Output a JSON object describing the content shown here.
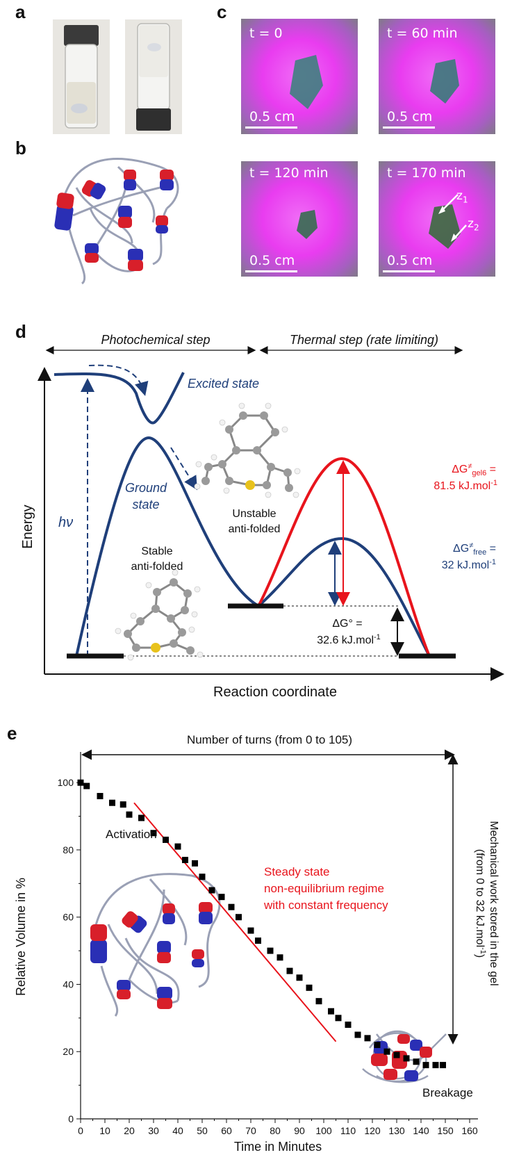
{
  "panels": {
    "a": "a",
    "b": "b",
    "c": "c",
    "d": "d",
    "e": "e"
  },
  "panel_c": {
    "times": [
      "t = 0",
      "t = 60 min",
      "t = 120 min",
      "t = 170 min"
    ],
    "scale_bar": "0.5 cm",
    "zone_z1": "z",
    "zone_z1_sub": "1",
    "zone_z2": "z",
    "zone_z2_sub": "2"
  },
  "panel_d": {
    "photochemical_step": "Photochemical step",
    "thermal_step": "Thermal step (rate limiting)",
    "excited_state": "Excited state",
    "ground_state_1": "Ground",
    "ground_state_2": "state",
    "hv": "hν",
    "energy_label": "Energy",
    "stable_1": "Stable",
    "stable_2": "anti-folded",
    "unstable_1": "Unstable",
    "unstable_2": "anti-folded",
    "dg_gel_main": "ΔG",
    "dg_gel_sup": "≠",
    "dg_gel_sub": "gel6",
    "dg_gel_eq": " =",
    "dg_gel_value": "81.5 kJ.mol",
    "dg_gel_exp": "-1",
    "dg_free_main": "ΔG",
    "dg_free_sup": "≠",
    "dg_free_sub": "free",
    "dg_free_eq": " =",
    "dg_free_value": "32 kJ.mol",
    "dg_free_exp": "-1",
    "dg0_label": "ΔG° =",
    "dg0_value": "32.6  kJ.mol",
    "dg0_exp": "-1",
    "x_axis_label": "Reaction coordinate",
    "colors": {
      "blue": "#1f3f7a",
      "red": "#e8141c"
    }
  },
  "panel_e": {
    "top_label": "Number of turns (from 0 to 105)",
    "activation": "Activation",
    "steady_1": "Steady state",
    "steady_2": "non-equilibrium regime",
    "steady_3": "with constant frequency",
    "breakage": "Breakage",
    "right_label_1": "Mechanical work stored in the gel",
    "right_label_2": "(from 0 to 32 kJ.mol",
    "right_label_exp": "-1",
    "right_label_end": ")"
  },
  "chart_data": {
    "type": "scatter",
    "title": "",
    "xlabel": "Time in Minutes",
    "ylabel": "Relative Volume in %",
    "xlim": [
      0,
      160
    ],
    "ylim": [
      0,
      105
    ],
    "x_ticks": [
      0,
      10,
      20,
      30,
      40,
      50,
      60,
      70,
      80,
      90,
      100,
      110,
      120,
      130,
      140,
      150,
      160
    ],
    "y_ticks": [
      0,
      20,
      40,
      60,
      80,
      100
    ],
    "series": [
      {
        "marker": "square",
        "color": "#000000",
        "x": [
          0,
          2.5,
          8,
          13,
          17.5,
          20,
          25,
          30,
          35,
          40,
          43,
          47,
          50,
          54,
          58,
          62,
          65,
          70,
          73,
          78,
          82,
          86,
          90,
          94,
          98,
          103,
          106,
          110,
          114,
          118,
          122,
          126,
          130,
          134,
          138,
          142,
          146,
          149
        ],
        "y": [
          100,
          99,
          96,
          94,
          93.5,
          90.5,
          89.5,
          85,
          83,
          81,
          77,
          76,
          72,
          68,
          66,
          63,
          60,
          56,
          53,
          50,
          48,
          44,
          42,
          39,
          35,
          32,
          30,
          28,
          25,
          24,
          22,
          20,
          19,
          18,
          17,
          16,
          16,
          16
        ]
      }
    ],
    "trend_line": {
      "color": "#e8141c",
      "x": [
        22,
        105
      ],
      "y": [
        94,
        23
      ]
    },
    "grid": false
  }
}
